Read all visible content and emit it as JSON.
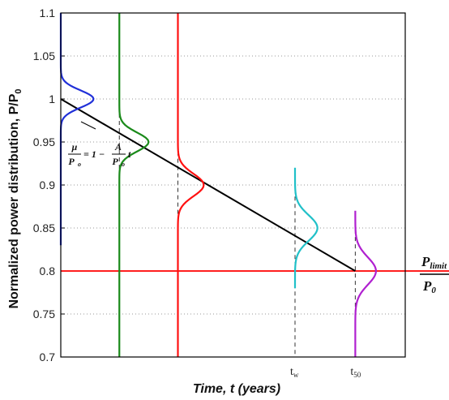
{
  "chart_data": {
    "type": "line",
    "title": "",
    "xlabel": "Time, t (years)",
    "ylabel": "Normalized power distribution, P/P",
    "ylabel_sub": "0",
    "ylim": [
      0.7,
      1.1
    ],
    "yticks": [
      "0.7",
      "0.75",
      "0.8",
      "0.85",
      "0.9",
      "0.95",
      "1",
      "1.05",
      "1.1"
    ],
    "grid": "dotted",
    "x_markers": [
      {
        "label": "t",
        "sub": "w",
        "x_fraction": 0.68
      },
      {
        "label": "t",
        "sub": "50",
        "x_fraction": 0.855
      }
    ],
    "trend_line": {
      "equation": {
        "mu": "μ",
        "p0": "P",
        "p0_sub": "o",
        "rhs": "= 1 −",
        "a": "A",
        "t": "t"
      },
      "start": {
        "x_fraction": 0.0,
        "y": 1.0
      },
      "end": {
        "x_fraction": 0.855,
        "y": 0.8
      }
    },
    "limit_line": {
      "y": 0.8,
      "color": "#ff0000",
      "label_num": "P",
      "label_num_sub": "limit",
      "label_den": "P",
      "label_den_sub": "0"
    },
    "series": [
      {
        "color": "#2030d8",
        "x_fraction": 0.0,
        "mean": 1.0,
        "sd": 0.01,
        "amp": 0.095,
        "from": 0.83,
        "to": 1.1
      },
      {
        "color": "#1a8a1a",
        "x_fraction": 0.17,
        "mean": 0.95,
        "sd": 0.011,
        "amp": 0.085,
        "from": 0.7,
        "to": 1.1
      },
      {
        "color": "#ff1010",
        "x_fraction": 0.34,
        "mean": 0.9,
        "sd": 0.013,
        "amp": 0.075,
        "from": 0.7,
        "to": 1.1
      },
      {
        "color": "#20c0c8",
        "x_fraction": 0.68,
        "mean": 0.85,
        "sd": 0.015,
        "amp": 0.065,
        "from": 0.78,
        "to": 0.92
      },
      {
        "color": "#b020d0",
        "x_fraction": 0.855,
        "mean": 0.8,
        "sd": 0.016,
        "amp": 0.06,
        "from": 0.7,
        "to": 0.87
      }
    ]
  }
}
